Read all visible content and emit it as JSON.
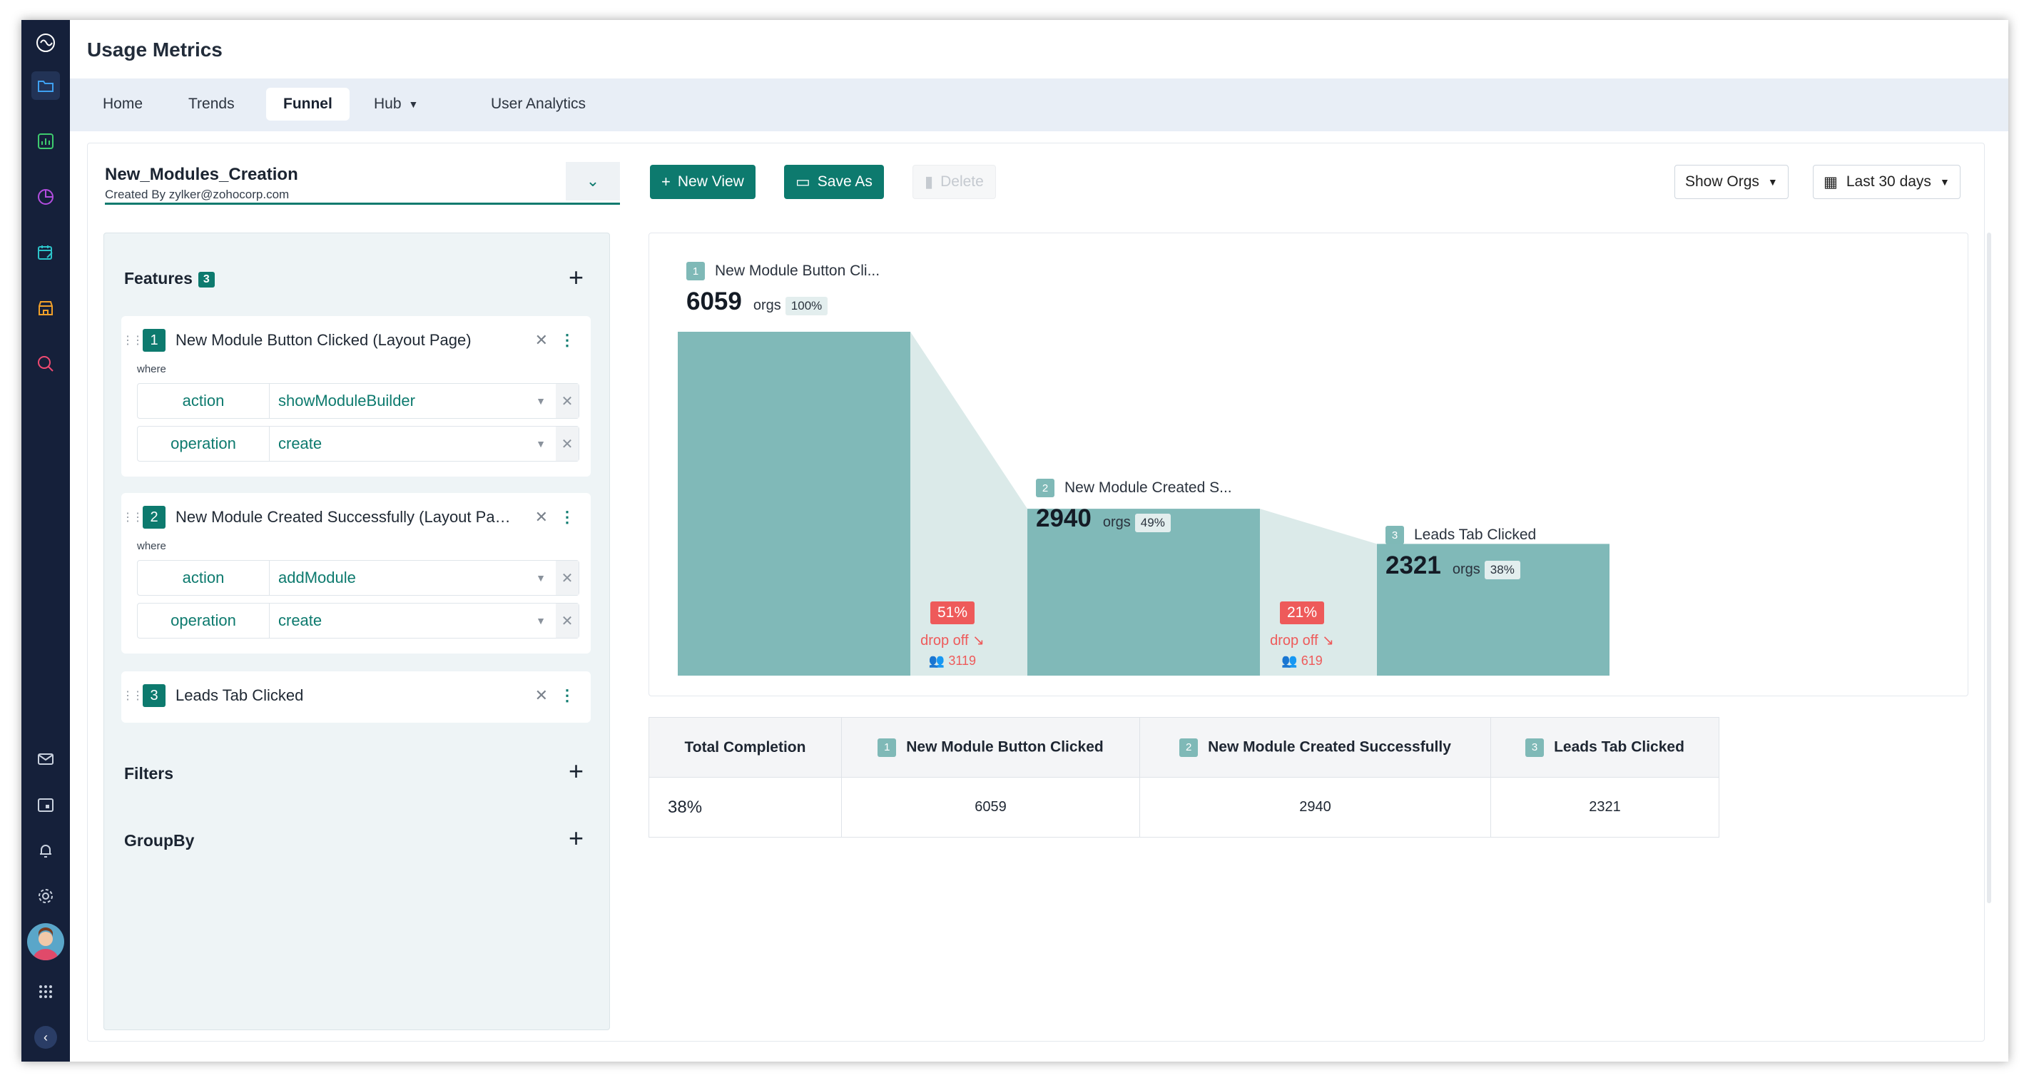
{
  "app": {
    "title": "Usage Metrics"
  },
  "nav": {
    "tabs": [
      {
        "label": "Home"
      },
      {
        "label": "Trends"
      },
      {
        "label": "Funnel",
        "active": true
      },
      {
        "label": "Hub"
      },
      {
        "label": "User Analytics"
      }
    ]
  },
  "view": {
    "name": "New_Modules_Creation",
    "created_by": "Created By zylker@zohocorp.com"
  },
  "toolbar": {
    "new_view": "New View",
    "save_as": "Save As",
    "delete": "Delete",
    "show_orgs": "Show Orgs",
    "date_range": "Last 30 days"
  },
  "features": {
    "title": "Features",
    "count": "3",
    "where_label": "where",
    "items": [
      {
        "num": "1",
        "name": "New Module Button Clicked (Layout Page)",
        "conditions": [
          {
            "key": "action",
            "value": "showModuleBuilder"
          },
          {
            "key": "operation",
            "value": "create"
          }
        ]
      },
      {
        "num": "2",
        "name": "New Module Created Successfully (Layout Page)",
        "conditions": [
          {
            "key": "action",
            "value": "addModule"
          },
          {
            "key": "operation",
            "value": "create"
          }
        ]
      },
      {
        "num": "3",
        "name": "Leads Tab Clicked",
        "conditions": []
      }
    ]
  },
  "filters": {
    "title": "Filters"
  },
  "groupby": {
    "title": "GroupBy"
  },
  "funnel": {
    "orgs_label": "orgs",
    "drop_label": "drop off",
    "stages": [
      {
        "num": "1",
        "label": "New Module Button Cli...",
        "value": "6059",
        "pct": "100%"
      },
      {
        "num": "2",
        "label": "New Module Created S...",
        "value": "2940",
        "pct": "49%"
      },
      {
        "num": "3",
        "label": "Leads Tab Clicked",
        "value": "2321",
        "pct": "38%"
      }
    ],
    "drops": [
      {
        "pct": "51%",
        "count": "3119"
      },
      {
        "pct": "21%",
        "count": "619"
      }
    ]
  },
  "chart_data": {
    "type": "bar",
    "categories": [
      "New Module Button Clicked",
      "New Module Created Successfully",
      "Leads Tab Clicked"
    ],
    "values": [
      6059,
      2940,
      2321
    ],
    "percent_of_first": [
      100,
      49,
      38
    ],
    "drop_off": [
      {
        "from": 1,
        "to": 2,
        "pct": 51,
        "count": 3119
      },
      {
        "from": 2,
        "to": 3,
        "pct": 21,
        "count": 619
      }
    ]
  },
  "table": {
    "headers": [
      "Total Completion",
      "New Module Button Clicked",
      "New Module Created Successfully",
      "Leads Tab Clicked"
    ],
    "header_nums": [
      "",
      "1",
      "2",
      "3"
    ],
    "row": [
      "38%",
      "6059",
      "2940",
      "2321"
    ]
  },
  "colors": {
    "accent": "#0d7a6e",
    "funnel_bar": "#80b9b8",
    "funnel_connector": "#dbeae9",
    "drop": "#ee5a5a",
    "rail": "#15203a"
  }
}
